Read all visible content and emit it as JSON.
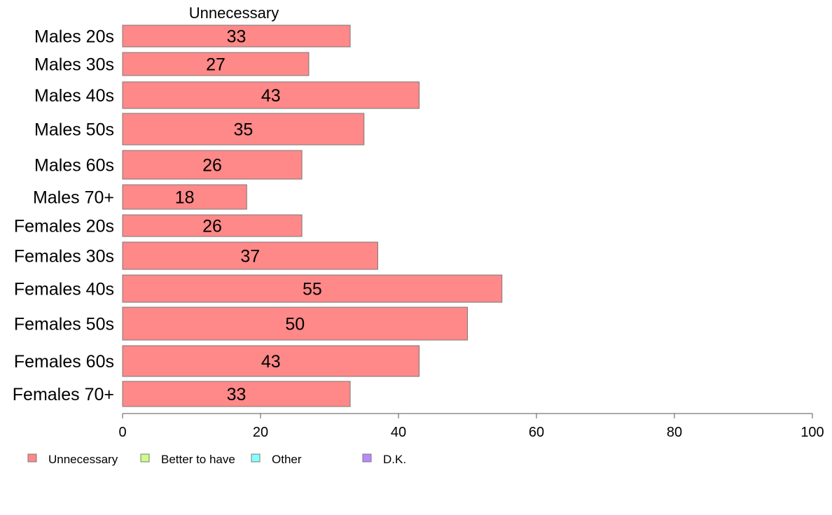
{
  "chart_data": {
    "type": "bar",
    "orientation": "horizontal",
    "stacked": true,
    "title": "Unnecessary",
    "categories": [
      "Males 20s",
      "Males 30s",
      "Males 40s",
      "Males 50s",
      "Males 60s",
      "Males 70+",
      "Females 20s",
      "Females 30s",
      "Females 40s",
      "Females 50s",
      "Females 60s",
      "Females 70+"
    ],
    "series": [
      {
        "name": "Unnecessary",
        "color": "#ff8888",
        "values": [
          33,
          27,
          43,
          35,
          26,
          18,
          26,
          37,
          55,
          50,
          43,
          33
        ]
      }
    ],
    "xlim": [
      0,
      100
    ],
    "xticks": [
      0,
      20,
      40,
      60,
      80,
      100
    ],
    "grid": false,
    "legend_position": "bottom-left",
    "legend": [
      {
        "label": "Unnecessary",
        "color": "#ff8888"
      },
      {
        "label": "Better to have",
        "color": "#ccff88"
      },
      {
        "label": "Other",
        "color": "#88ffff"
      },
      {
        "label": "D.K.",
        "color": "#bb88ff"
      }
    ]
  }
}
